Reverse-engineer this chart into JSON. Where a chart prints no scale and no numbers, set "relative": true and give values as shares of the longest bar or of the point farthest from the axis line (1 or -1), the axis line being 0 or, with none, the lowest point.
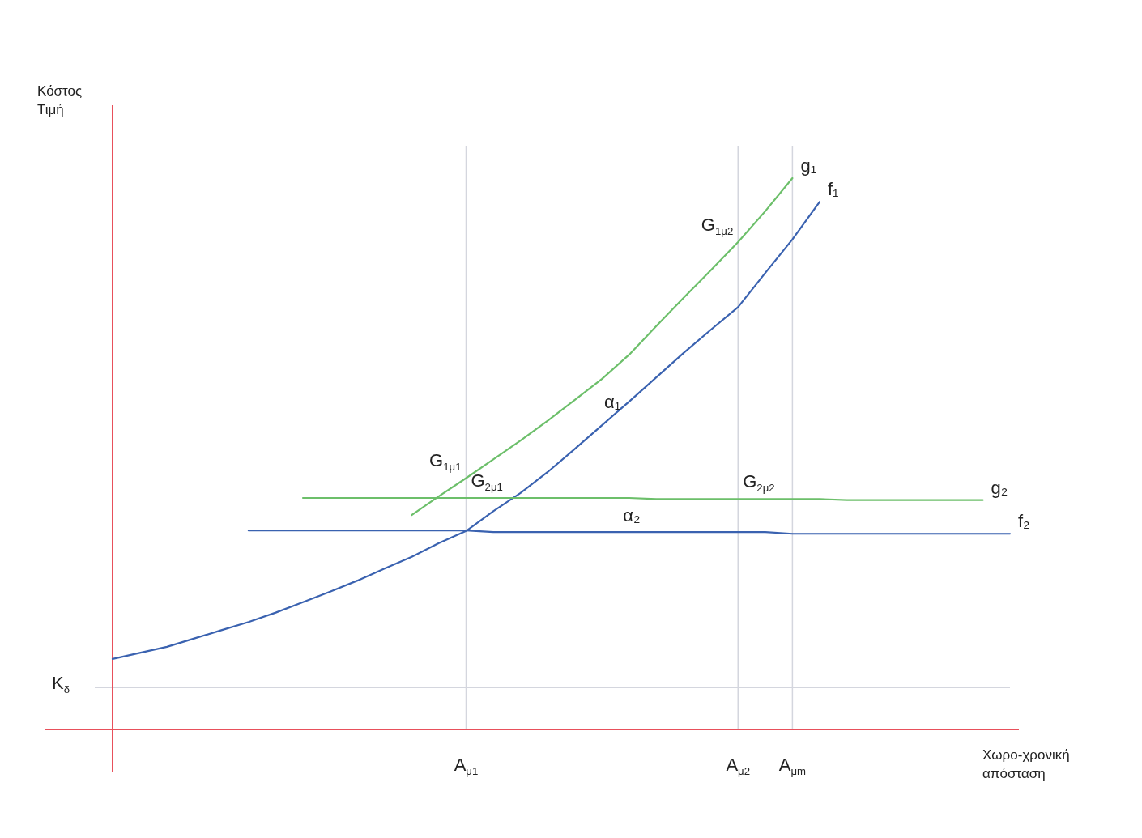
{
  "chart_data": {
    "type": "line",
    "relative": true,
    "xlabel": "Χωρο-χρονική απόσταση",
    "ylabel": "Κόστος Τιμή",
    "marker": "none",
    "line_style": "solid",
    "categories": [
      null,
      null,
      null,
      null,
      null,
      null,
      null,
      null,
      null,
      null,
      null,
      null,
      null,
      "A$_{μ1}$",
      null,
      null,
      null,
      null,
      null,
      null,
      null,
      null,
      null,
      "A$_{μ2}$",
      null,
      "A$_{μm}$",
      null,
      null,
      null,
      null,
      null,
      null,
      null,
      null
    ],
    "series": [
      {
        "name": "g₁",
        "color": "#6cbf6a",
        "values": [
          null,
          null,
          null,
          null,
          null,
          null,
          null,
          null,
          null,
          null,
          null,
          0.389,
          0.423,
          0.456,
          0.49,
          0.524,
          0.56,
          0.598,
          0.636,
          0.68,
          0.732,
          0.783,
          0.833,
          0.884,
          0.94,
          1,
          null,
          null,
          null,
          null,
          null,
          null,
          null,
          null
        ]
      },
      {
        "name": "f₁",
        "color": "#3a62b0",
        "values": [
          0.128,
          0.139,
          0.15,
          0.165,
          0.18,
          0.195,
          0.212,
          0.231,
          0.25,
          0.27,
          0.292,
          0.313,
          0.338,
          0.36,
          0.396,
          0.429,
          0.467,
          0.509,
          0.552,
          0.595,
          0.639,
          0.683,
          0.725,
          0.766,
          0.828,
          0.889,
          0.957,
          null,
          null,
          null,
          null,
          null,
          null,
          null
        ]
      },
      {
        "name": "g₂",
        "color": "#6cbf6a",
        "values": [
          null,
          null,
          null,
          null,
          null,
          null,
          null,
          0.42,
          0.42,
          0.42,
          0.42,
          0.42,
          0.42,
          0.42,
          0.42,
          0.42,
          0.42,
          0.42,
          0.42,
          0.42,
          0.418,
          0.418,
          0.418,
          0.418,
          0.418,
          0.418,
          0.418,
          0.416,
          0.416,
          0.416,
          0.416,
          0.416,
          0.416,
          null
        ]
      },
      {
        "name": "f₂",
        "color": "#3a62b0",
        "values": [
          null,
          null,
          null,
          null,
          null,
          0.361,
          0.361,
          0.361,
          0.361,
          0.361,
          0.361,
          0.361,
          0.361,
          0.361,
          0.358,
          0.358,
          0.358,
          0.358,
          0.358,
          0.358,
          0.358,
          0.358,
          0.358,
          0.358,
          0.358,
          0.355,
          0.355,
          0.355,
          0.355,
          0.355,
          0.355,
          0.355,
          0.355,
          0.355
        ]
      }
    ],
    "ref_lines": [
      {
        "axis": "x",
        "value": "A$_{μ1}$",
        "color": "#d4d6de"
      },
      {
        "axis": "x",
        "value": "A$_{μ2}$",
        "color": "#d4d6de"
      },
      {
        "axis": "x",
        "value": "A$_{μm}$",
        "color": "#d4d6de"
      },
      {
        "axis": "y",
        "value": 0.076,
        "label": "K$_{δ}$",
        "color": "#d4d6de"
      }
    ],
    "annotations": [
      {
        "text": "G$_{1μ1}$",
        "x": "A$_{μ1}$",
        "y": 0.456
      },
      {
        "text": "G$_{2μ1}$",
        "x": "A$_{μ1}$",
        "y": 0.42
      },
      {
        "text": "G$_{1μ2}$",
        "x": "A$_{μ2}$",
        "y": 0.884
      },
      {
        "text": "G$_{2μ2}$",
        "x": "A$_{μ2}$",
        "y": 0.418
      },
      "α₁",
      "α₂"
    ]
  }
}
